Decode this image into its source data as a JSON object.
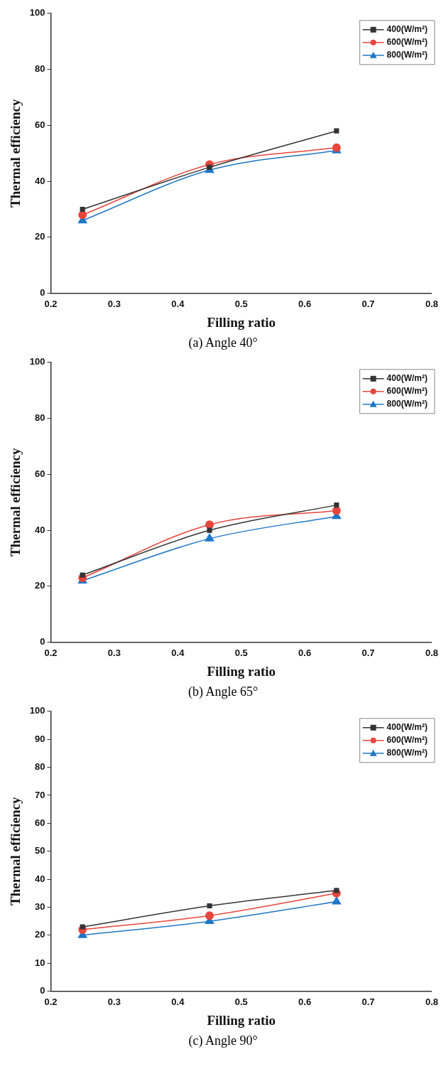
{
  "chart_data": [
    {
      "type": "line",
      "xlabel": "Filling ratio",
      "ylabel": "Thermal efficiency",
      "annotations": [
        "(a) Angle 40°"
      ],
      "x": [
        0.25,
        0.45,
        0.65
      ],
      "xlim": [
        0.2,
        0.8
      ],
      "xticks": [
        0.2,
        0.3,
        0.4,
        0.5,
        0.6,
        0.7,
        0.8
      ],
      "ylim": [
        0,
        100
      ],
      "yticks": [
        0,
        20,
        40,
        60,
        80,
        100
      ],
      "grid": false,
      "legend": "top right",
      "series": [
        {
          "name": "400(W/m²)",
          "color": "#333333",
          "marker": "square",
          "values": [
            30,
            45,
            58
          ]
        },
        {
          "name": "600(W/m²)",
          "color": "#e8453c",
          "marker": "circle",
          "values": [
            28,
            46,
            52
          ]
        },
        {
          "name": "800(W/m²)",
          "color": "#1f77c8",
          "marker": "triangle",
          "values": [
            26,
            44,
            51
          ]
        }
      ]
    },
    {
      "type": "line",
      "xlabel": "Filling ratio",
      "ylabel": "Thermal efficiency",
      "annotations": [
        "(b) Angle 65°"
      ],
      "x": [
        0.25,
        0.45,
        0.65
      ],
      "xlim": [
        0.2,
        0.8
      ],
      "xticks": [
        0.2,
        0.3,
        0.4,
        0.5,
        0.6,
        0.7,
        0.8
      ],
      "ylim": [
        0,
        100
      ],
      "yticks": [
        0,
        20,
        40,
        60,
        80,
        100
      ],
      "grid": false,
      "legend": "top right",
      "series": [
        {
          "name": "400(W/m²)",
          "color": "#333333",
          "marker": "square",
          "values": [
            24,
            40,
            49
          ]
        },
        {
          "name": "600(W/m²)",
          "color": "#e8453c",
          "marker": "circle",
          "values": [
            23,
            42,
            47
          ]
        },
        {
          "name": "800(W/m²)",
          "color": "#1f77c8",
          "marker": "triangle",
          "values": [
            22,
            37,
            45
          ]
        }
      ]
    },
    {
      "type": "line",
      "xlabel": "Filling ratio",
      "ylabel": "Thermal efficiency",
      "annotations": [
        "(c) Angle 90°"
      ],
      "x": [
        0.25,
        0.45,
        0.65
      ],
      "xlim": [
        0.2,
        0.8
      ],
      "xticks": [
        0.2,
        0.3,
        0.4,
        0.5,
        0.6,
        0.7,
        0.8
      ],
      "ylim": [
        0,
        100
      ],
      "yticks": [
        0,
        10,
        20,
        30,
        40,
        50,
        60,
        70,
        80,
        90,
        100
      ],
      "grid": false,
      "legend": "top right",
      "series": [
        {
          "name": "400(W/m²)",
          "color": "#333333",
          "marker": "square",
          "values": [
            23,
            30.5,
            36
          ]
        },
        {
          "name": "600(W/m²)",
          "color": "#e8453c",
          "marker": "circle",
          "values": [
            22,
            27,
            35
          ]
        },
        {
          "name": "800(W/m²)",
          "color": "#1f77c8",
          "marker": "triangle",
          "values": [
            20,
            25,
            32
          ]
        }
      ]
    }
  ]
}
